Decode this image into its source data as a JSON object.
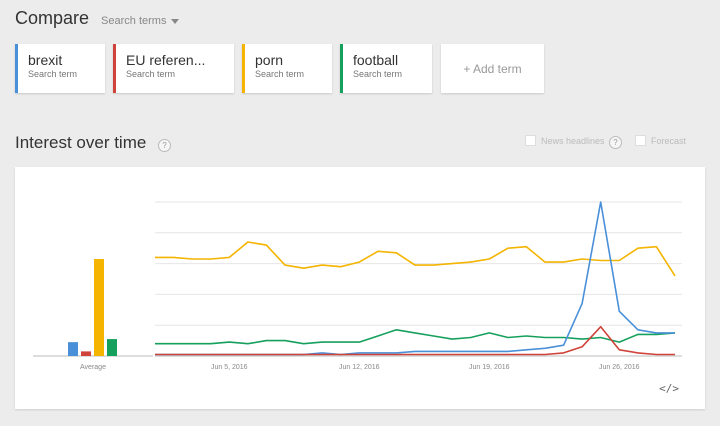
{
  "header": {
    "title": "Compare",
    "search_terms_label": "Search terms"
  },
  "terms": [
    {
      "name": "brexit",
      "sub": "Search term",
      "color": "#4a90d9"
    },
    {
      "name": "EU referen...",
      "sub": "Search term",
      "color": "#d0433a"
    },
    {
      "name": "porn",
      "sub": "Search term",
      "color": "#f4b400"
    },
    {
      "name": "football",
      "sub": "Search term",
      "color": "#16a05d"
    }
  ],
  "add_term_label": "+ Add term",
  "interest": {
    "title": "Interest over time",
    "help": "?",
    "news_headlines": "News headlines",
    "forecast": "Forecast"
  },
  "chart_data": {
    "type": "line",
    "average_label": "Average",
    "averages": [
      {
        "name": "brexit",
        "value": 9,
        "color": "#4a90d9"
      },
      {
        "name": "EU referen...",
        "value": 3,
        "color": "#d0433a"
      },
      {
        "name": "porn",
        "value": 63,
        "color": "#f4b400"
      },
      {
        "name": "football",
        "value": 11,
        "color": "#16a05d"
      }
    ],
    "x_ticks": [
      {
        "label": "Jun 5, 2016",
        "index": 4
      },
      {
        "label": "Jun 12, 2016",
        "index": 11
      },
      {
        "label": "Jun 19, 2016",
        "index": 18
      },
      {
        "label": "Jun 26, 2016",
        "index": 25
      }
    ],
    "ylim": [
      0,
      100
    ],
    "grid": true,
    "series": [
      {
        "name": "porn",
        "color": "#f4b400",
        "values": [
          64,
          64,
          63,
          63,
          64,
          74,
          72,
          59,
          57,
          59,
          58,
          61,
          68,
          67,
          59,
          59,
          60,
          61,
          63,
          70,
          71,
          61,
          61,
          63,
          62,
          62,
          70,
          71,
          52
        ]
      },
      {
        "name": "football",
        "color": "#16a05d",
        "values": [
          8,
          8,
          8,
          8,
          9,
          8,
          10,
          10,
          8,
          9,
          9,
          9,
          13,
          17,
          15,
          13,
          11,
          12,
          15,
          12,
          13,
          12,
          12,
          11,
          12,
          9,
          14,
          14,
          15
        ]
      },
      {
        "name": "brexit",
        "color": "#4a90d9",
        "values": [
          1,
          1,
          1,
          1,
          1,
          1,
          1,
          1,
          1,
          2,
          1,
          2,
          2,
          2,
          3,
          3,
          3,
          3,
          3,
          3,
          4,
          5,
          7,
          34,
          100,
          29,
          17,
          15,
          15
        ]
      },
      {
        "name": "EU referen...",
        "color": "#d0433a",
        "values": [
          1,
          1,
          1,
          1,
          1,
          1,
          1,
          1,
          1,
          1,
          1,
          1,
          1,
          1,
          1,
          1,
          1,
          1,
          1,
          1,
          1,
          1,
          2,
          6,
          19,
          4,
          2,
          1,
          1
        ]
      }
    ]
  },
  "embed_label": "</>"
}
